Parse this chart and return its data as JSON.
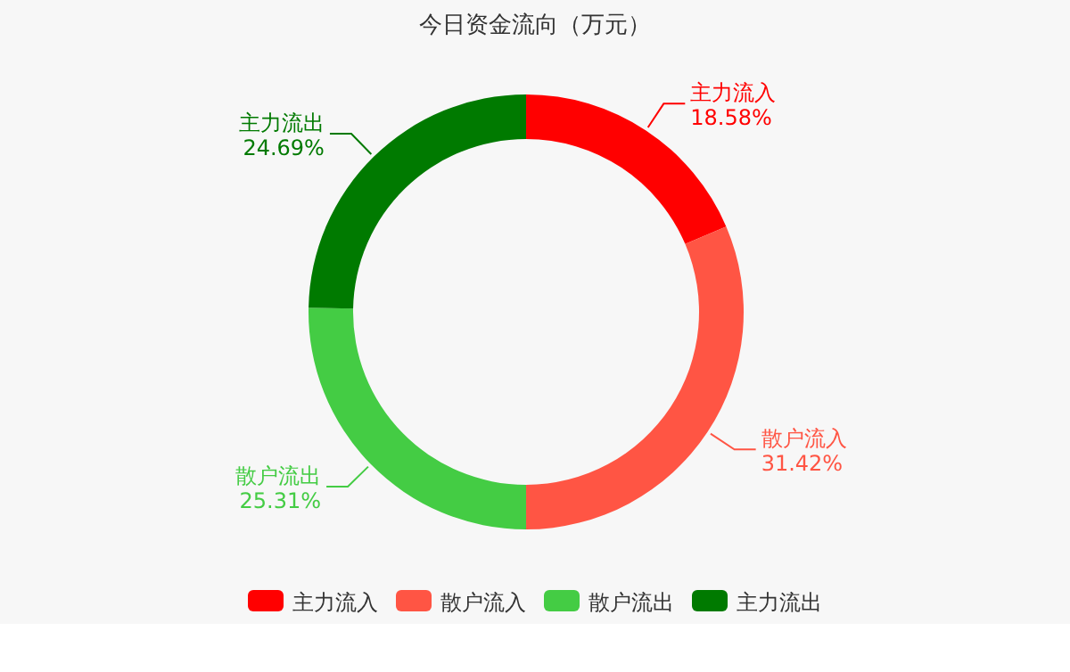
{
  "chart_data": {
    "type": "donut",
    "title": "今日资金流向（万元）",
    "categories": [
      "主力流入",
      "散户流入",
      "散户流出",
      "主力流出"
    ],
    "values": [
      18.58,
      31.42,
      25.31,
      24.69
    ],
    "value_labels": [
      "18.58%",
      "31.42%",
      "25.31%",
      "24.69%"
    ],
    "colors": [
      "#ff0000",
      "#ff5544",
      "#44cc44",
      "#007a00"
    ],
    "legend": "bottom"
  }
}
